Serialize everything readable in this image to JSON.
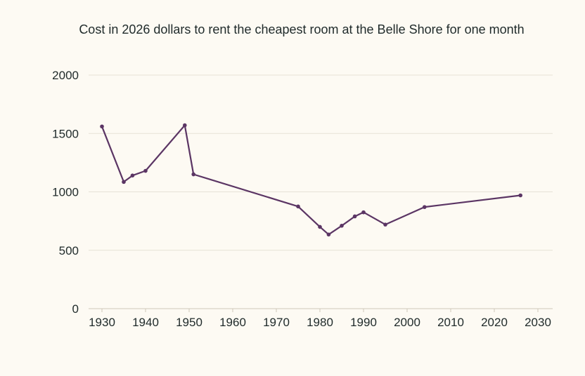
{
  "chart_data": {
    "type": "line",
    "title": "Cost in 2026 dollars to rent the cheapest room at the Belle Shore for one month",
    "xlabel": "",
    "ylabel": "",
    "xlim": [
      1927,
      2031
    ],
    "ylim": [
      0,
      2000
    ],
    "x_ticks": [
      "1930",
      "1940",
      "1950",
      "1960",
      "1970",
      "1980",
      "1990",
      "2000",
      "2010",
      "2020",
      "2030"
    ],
    "y_ticks": [
      "0",
      "500",
      "1000",
      "1500",
      "2000"
    ],
    "grid": "horizontal",
    "legend": "none",
    "series": [
      {
        "color": "#5b3564",
        "x": [
          1930,
          1935,
          1937,
          1940,
          1949,
          1951,
          1975,
          1980,
          1982,
          1985,
          1988,
          1990,
          1995,
          2004,
          2026
        ],
        "y": [
          1560,
          1085,
          1140,
          1180,
          1570,
          1150,
          875,
          700,
          635,
          710,
          790,
          825,
          720,
          870,
          970
        ]
      }
    ]
  }
}
